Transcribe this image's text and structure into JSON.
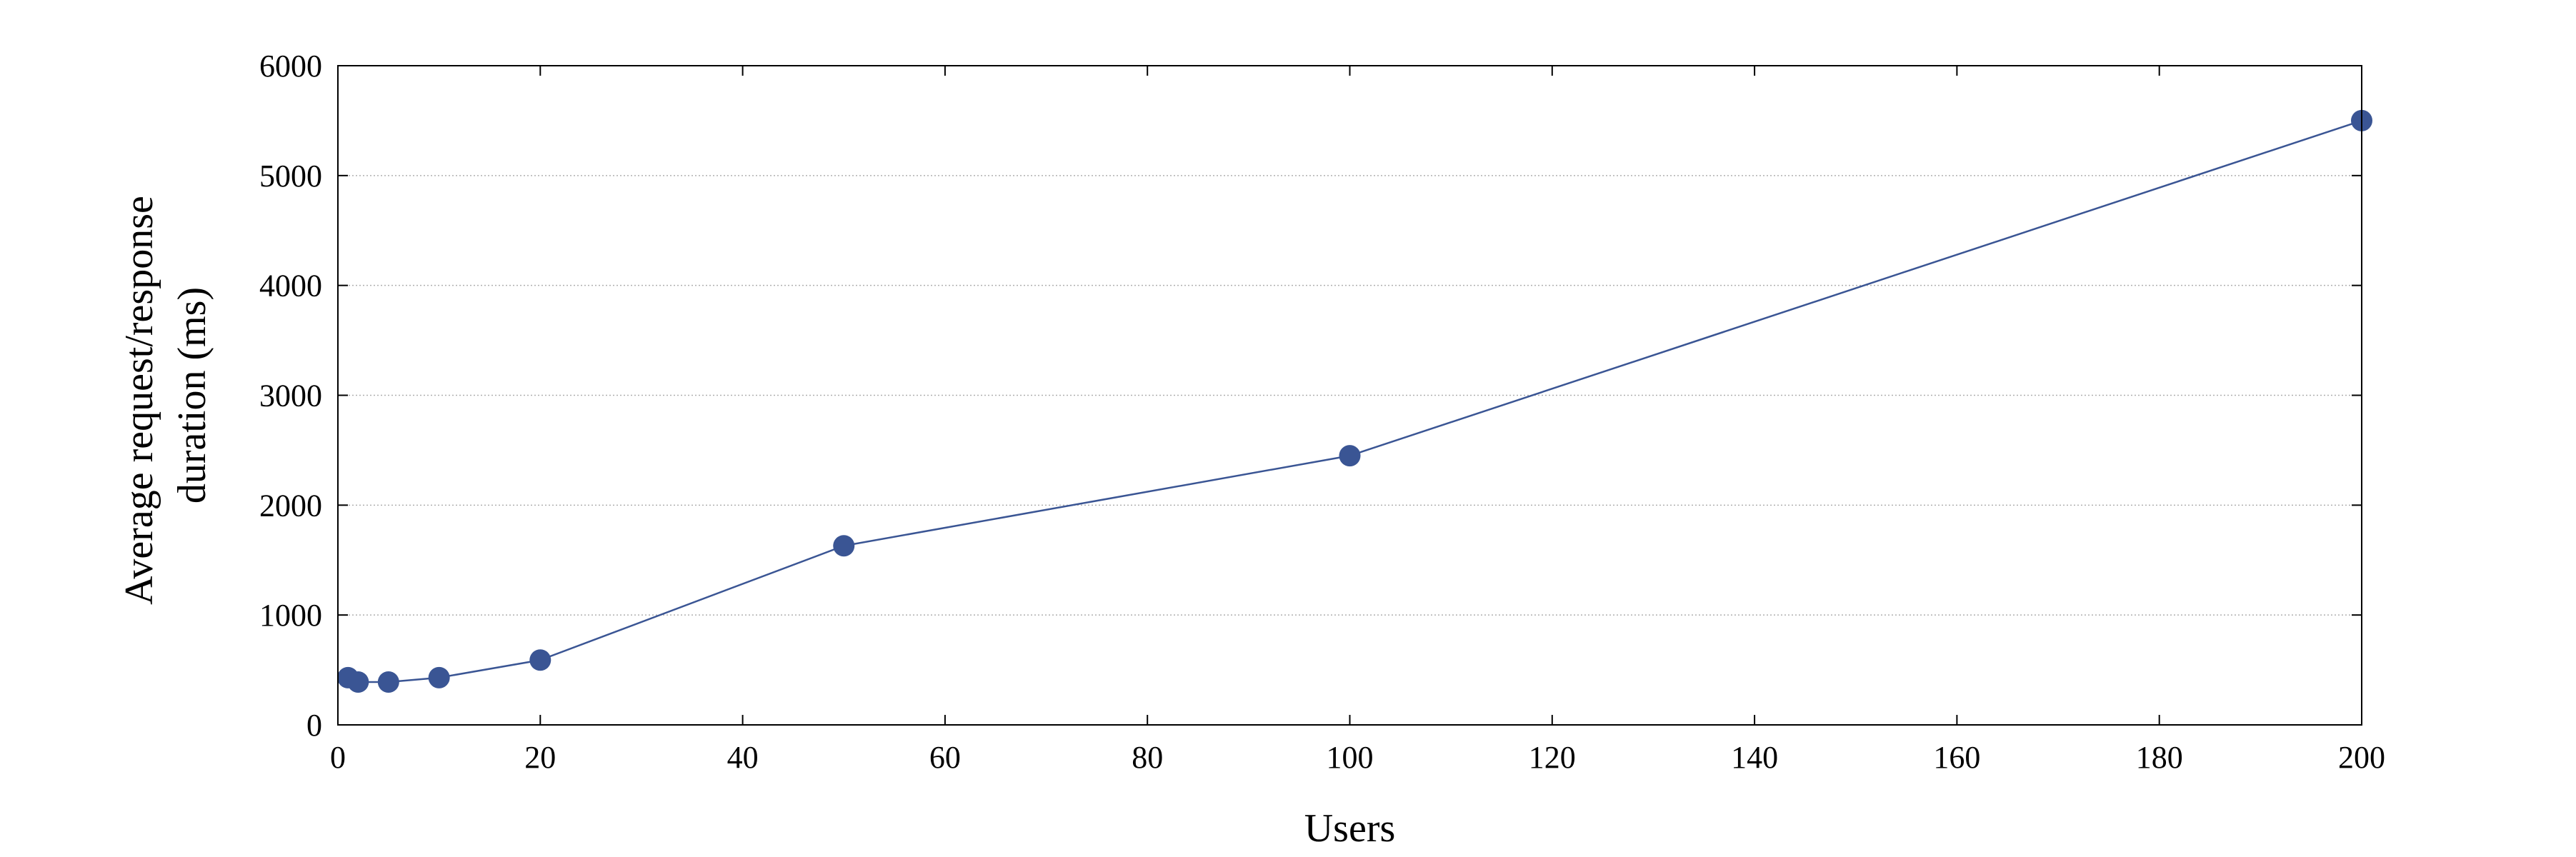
{
  "chart_data": {
    "type": "line",
    "title": "",
    "xlabel": "Users",
    "ylabel": [
      "Average request/response",
      "duration (ms)"
    ],
    "xlim": [
      0,
      200
    ],
    "ylim": [
      0,
      6000
    ],
    "xticks": [
      0,
      20,
      40,
      60,
      80,
      100,
      120,
      140,
      160,
      180,
      200
    ],
    "yticks": [
      0,
      1000,
      2000,
      3000,
      4000,
      5000,
      6000
    ],
    "grid": "horizontal-dotted",
    "colors": {
      "series": "#3a5594",
      "grid": "#b0b0b0",
      "axis": "#000000"
    },
    "series": [
      {
        "x": [
          1,
          2,
          5,
          10,
          20,
          50,
          100,
          200
        ],
        "y": [
          430,
          390,
          390,
          430,
          590,
          1630,
          2450,
          5500
        ]
      }
    ]
  }
}
